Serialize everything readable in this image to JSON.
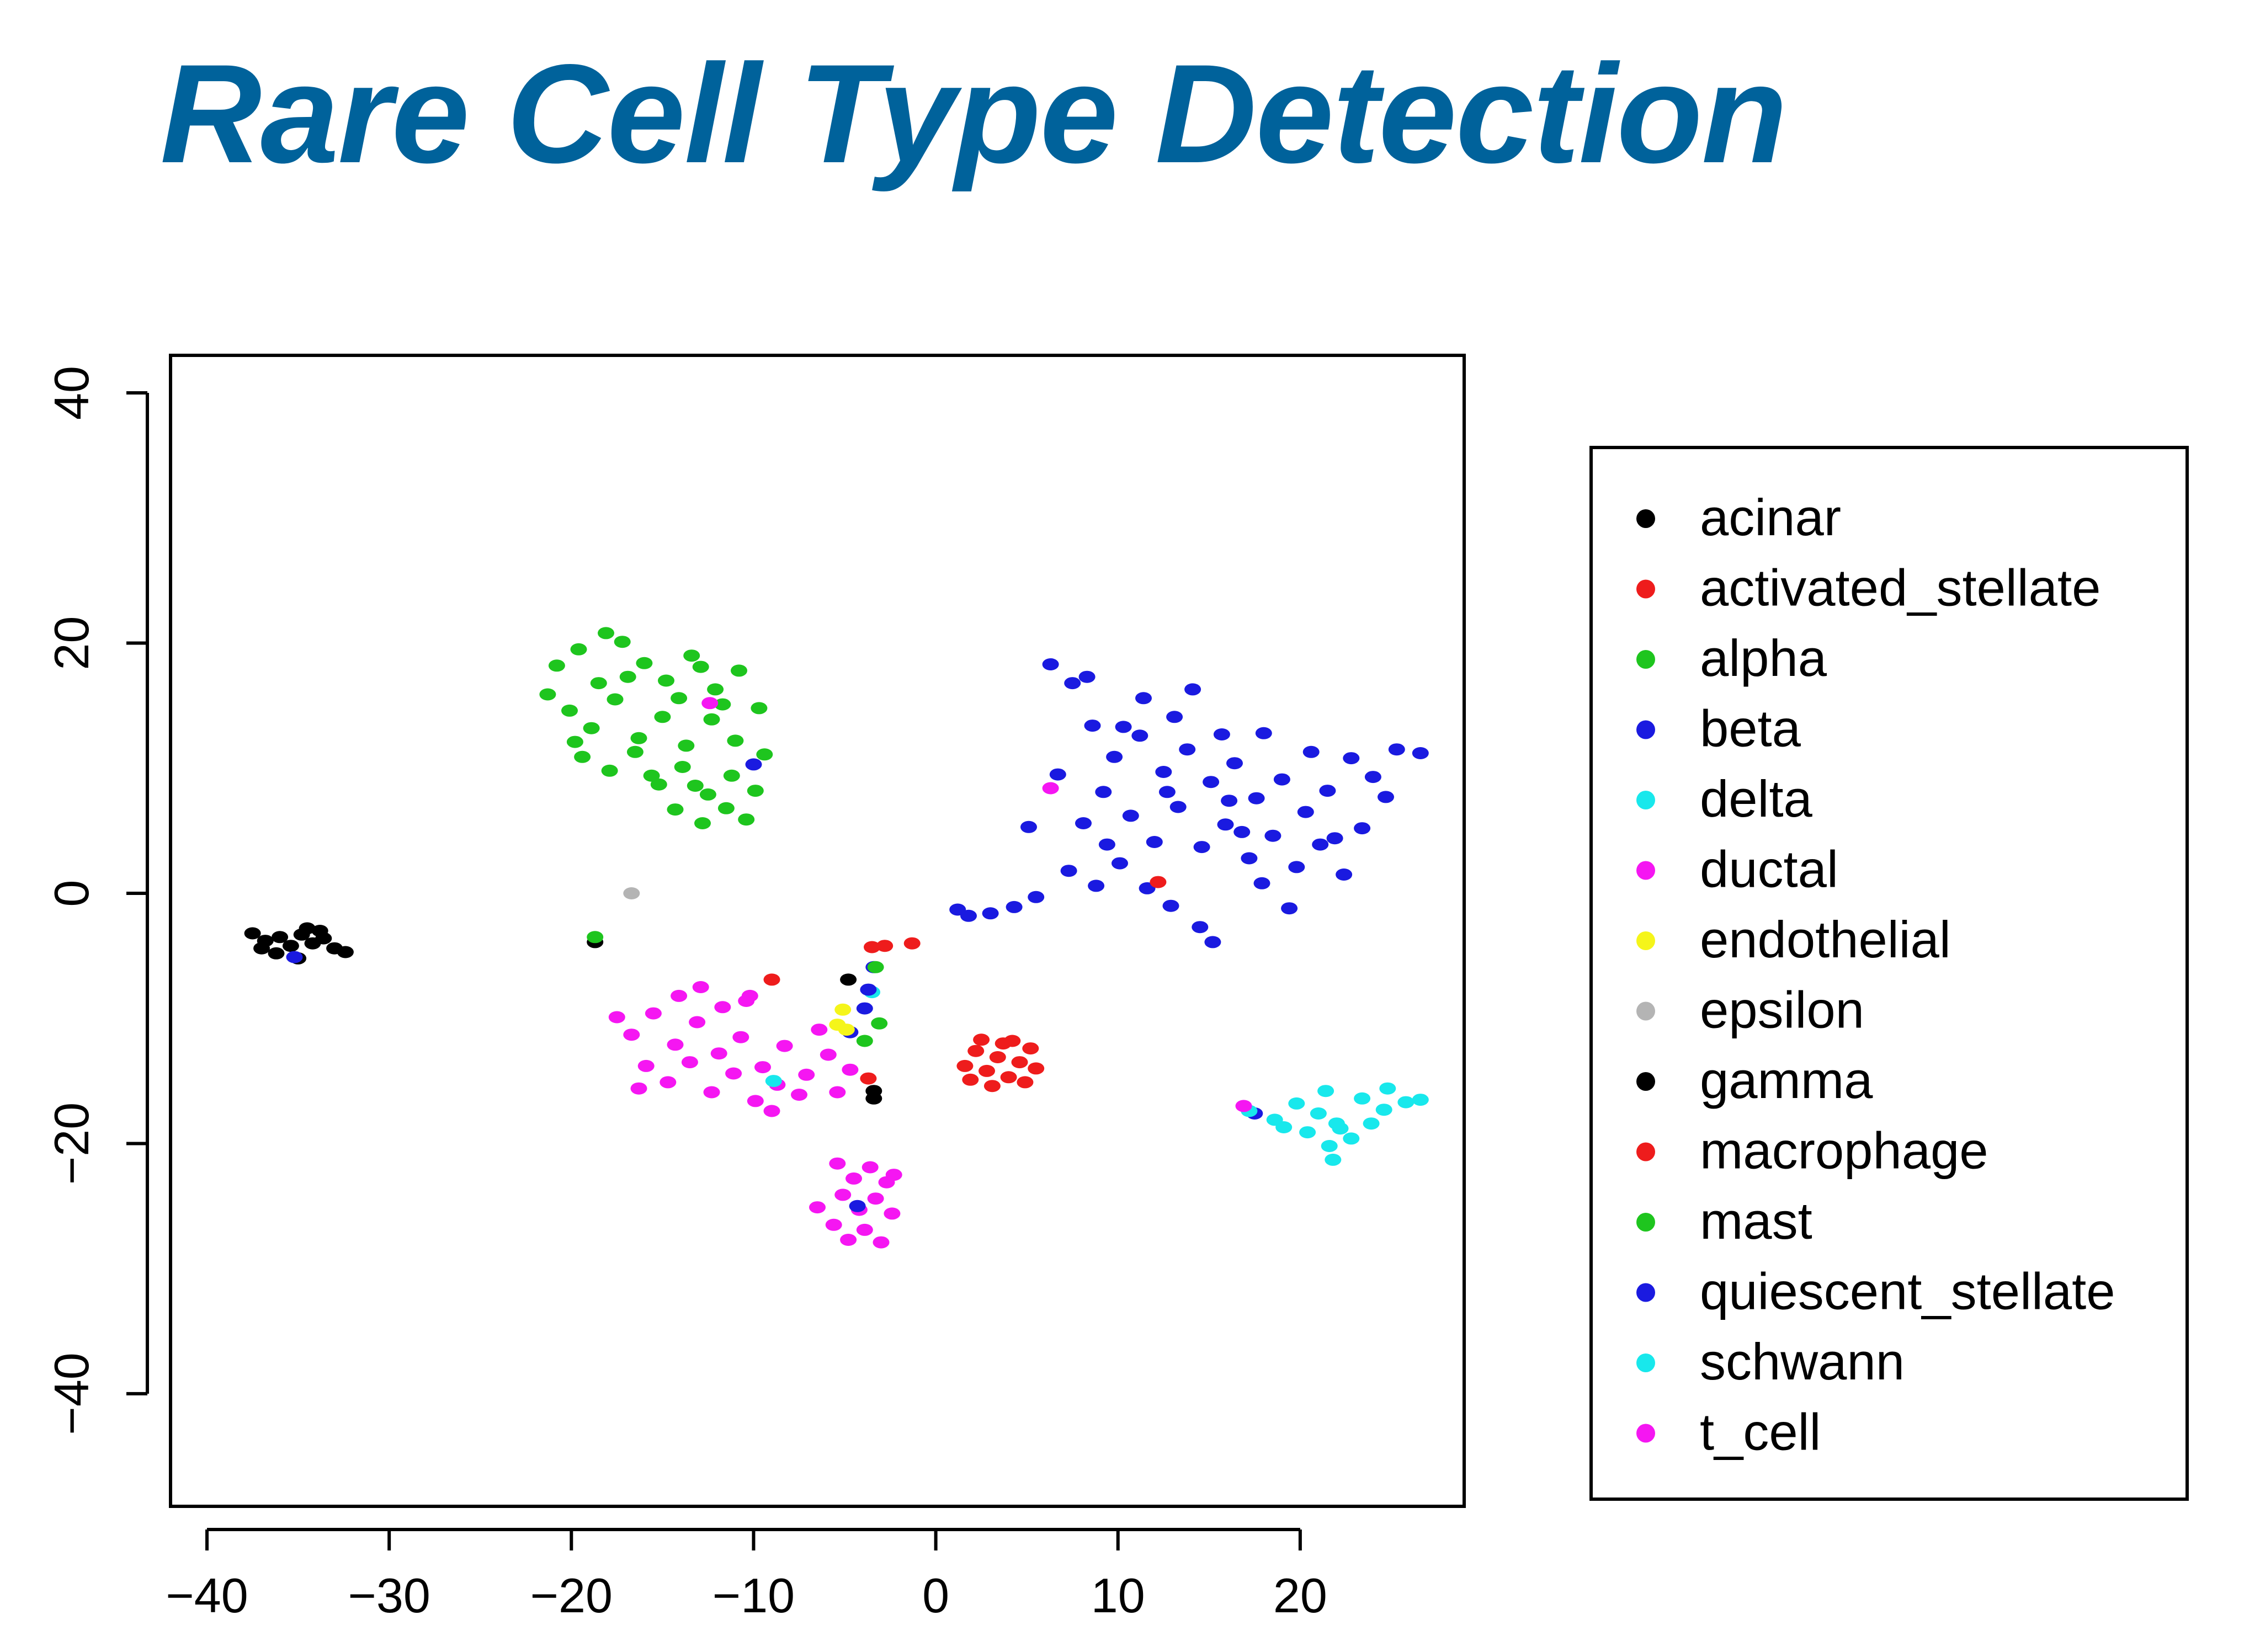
{
  "slide_title": "Rare Cell Type Detection",
  "chart_data": {
    "type": "scatter",
    "title": "",
    "xlabel": "",
    "ylabel": "",
    "xlim": [
      -42,
      29
    ],
    "ylim": [
      -49,
      43
    ],
    "x_ticks": [
      -40,
      -30,
      -20,
      -10,
      0,
      10,
      20
    ],
    "y_ticks": [
      -40,
      -20,
      0,
      20,
      40
    ],
    "x_tick_labels": [
      "−40",
      "−30",
      "−20",
      "−10",
      "0",
      "10",
      "20"
    ],
    "y_tick_labels": [
      "−40",
      "−20",
      "0",
      "20",
      "40"
    ],
    "grid": false,
    "legend_position": "right",
    "series": [
      {
        "name": "acinar",
        "color": "#000000",
        "points": [
          [
            -37.5,
            -3.2
          ],
          [
            -36.8,
            -3.8
          ],
          [
            -36,
            -3.5
          ],
          [
            -35.4,
            -4.2
          ],
          [
            -34.8,
            -3.3
          ],
          [
            -34.2,
            -4
          ],
          [
            -33.6,
            -3.6
          ],
          [
            -33,
            -4.4
          ],
          [
            -32.4,
            -4.7
          ],
          [
            -36.2,
            -4.8
          ],
          [
            -35,
            -5.2
          ],
          [
            -34.5,
            -2.8
          ],
          [
            -33.8,
            -3
          ],
          [
            -37,
            -4.4
          ]
        ]
      },
      {
        "name": "activated_stellate",
        "color": "#ee1c1c",
        "points": [
          [
            1.6,
            -13.8
          ],
          [
            2.2,
            -12.6
          ],
          [
            2.8,
            -14.2
          ],
          [
            3.4,
            -13.1
          ],
          [
            4,
            -14.7
          ],
          [
            4.6,
            -13.5
          ],
          [
            5.2,
            -12.4
          ],
          [
            3.1,
            -15.4
          ],
          [
            2.5,
            -11.7
          ],
          [
            4.2,
            -11.8
          ],
          [
            1.9,
            -14.9
          ],
          [
            5.5,
            -14
          ],
          [
            3.7,
            -12
          ],
          [
            4.9,
            -15.1
          ]
        ]
      },
      {
        "name": "alpha",
        "color": "#1ec51e",
        "points": [
          [
            -20.8,
            18.2
          ],
          [
            -19.6,
            19.5
          ],
          [
            -18.5,
            16.8
          ],
          [
            -17.2,
            20.1
          ],
          [
            -16,
            18.4
          ],
          [
            -14.8,
            17
          ],
          [
            -13.4,
            19
          ],
          [
            -12.1,
            16.3
          ],
          [
            -10.8,
            17.8
          ],
          [
            -20.1,
            14.6
          ],
          [
            -18.9,
            13.2
          ],
          [
            -17.6,
            15.5
          ],
          [
            -16.3,
            12.4
          ],
          [
            -15,
            14.1
          ],
          [
            -13.7,
            11.8
          ],
          [
            -12.3,
            13.9
          ],
          [
            -11,
            12.2
          ],
          [
            -9.7,
            14.8
          ],
          [
            -19.4,
            10.9
          ],
          [
            -17.9,
            9.8
          ],
          [
            -16.5,
            11.3
          ],
          [
            -15.2,
            8.7
          ],
          [
            -13.9,
            10.1
          ],
          [
            -12.5,
            7.9
          ],
          [
            -11.2,
            9.4
          ],
          [
            -9.9,
            8.2
          ],
          [
            -10.4,
            5.9
          ],
          [
            -14.3,
            6.7
          ],
          [
            -12.8,
            5.6
          ],
          [
            -21.3,
            15.9
          ],
          [
            -16.9,
            17.3
          ],
          [
            -14.1,
            15.6
          ],
          [
            -11.7,
            15.1
          ],
          [
            -18.1,
            20.8
          ],
          [
            -9.4,
            11.1
          ],
          [
            -15.6,
            9.4
          ],
          [
            -13.2,
            8.6
          ],
          [
            -19.8,
            12.1
          ],
          [
            -12.9,
            18.1
          ],
          [
            -11.5,
            6.8
          ]
        ]
      },
      {
        "name": "beta",
        "color": "#1a1ae0",
        "points": [
          [
            6.3,
            18.3
          ],
          [
            7.5,
            16.8
          ],
          [
            8.6,
            13.4
          ],
          [
            9.8,
            10.9
          ],
          [
            11.2,
            12.6
          ],
          [
            12.5,
            9.7
          ],
          [
            13.8,
            11.5
          ],
          [
            15.1,
            8.9
          ],
          [
            16.4,
            10.4
          ],
          [
            17.6,
            7.6
          ],
          [
            19,
            9.1
          ],
          [
            20.3,
            6.5
          ],
          [
            21.5,
            8.2
          ],
          [
            22.8,
            10.8
          ],
          [
            24,
            9.3
          ],
          [
            25.3,
            11.5
          ],
          [
            26.6,
            11.2
          ],
          [
            8.1,
            5.6
          ],
          [
            9.4,
            3.9
          ],
          [
            10.7,
            6.2
          ],
          [
            12,
            4.1
          ],
          [
            13.3,
            6.9
          ],
          [
            14.6,
            3.7
          ],
          [
            15.9,
            5.5
          ],
          [
            17.2,
            2.8
          ],
          [
            18.5,
            4.6
          ],
          [
            19.8,
            2.1
          ],
          [
            21.1,
            3.9
          ],
          [
            22.4,
            1.5
          ],
          [
            7.3,
            1.8
          ],
          [
            8.8,
            0.6
          ],
          [
            10.1,
            2.4
          ],
          [
            11.6,
            0.4
          ],
          [
            12.9,
            -1
          ],
          [
            5.5,
            -0.3
          ],
          [
            4.3,
            -1.1
          ],
          [
            3,
            -1.6
          ],
          [
            1.8,
            -1.8
          ],
          [
            1.2,
            -1.3
          ],
          [
            14.5,
            -2.7
          ],
          [
            15.2,
            -3.9
          ],
          [
            16.1,
            7.4
          ],
          [
            18,
            12.8
          ],
          [
            20.6,
            11.3
          ],
          [
            13.1,
            14.1
          ],
          [
            11.4,
            15.6
          ],
          [
            9.2,
            8.1
          ],
          [
            23.4,
            5.2
          ],
          [
            6.7,
            9.5
          ],
          [
            15.7,
            12.7
          ],
          [
            17.9,
            0.8
          ],
          [
            19.4,
            -1.2
          ],
          [
            14.1,
            16.3
          ],
          [
            8.3,
            17.3
          ],
          [
            21.9,
            4.4
          ],
          [
            24.7,
            7.7
          ],
          [
            5.1,
            5.3
          ],
          [
            12.7,
            8.1
          ],
          [
            16.8,
            4.9
          ],
          [
            10.3,
            13.3
          ],
          [
            -4.7,
            -11.1
          ],
          [
            -3.9,
            -9.2
          ],
          [
            -3.4,
            -5.9
          ],
          [
            17.5,
            -17.6
          ]
        ]
      },
      {
        "name": "delta",
        "color": "#18e8ec",
        "points": [
          [
            17.2,
            -17.4
          ],
          [
            18.6,
            -18.1
          ],
          [
            19.8,
            -16.8
          ],
          [
            21,
            -17.6
          ],
          [
            22.2,
            -18.8
          ],
          [
            23.4,
            -16.4
          ],
          [
            24.6,
            -17.3
          ],
          [
            25.8,
            -16.7
          ],
          [
            26.6,
            -16.5
          ],
          [
            20.4,
            -19.1
          ],
          [
            21.6,
            -20.2
          ],
          [
            22.8,
            -19.6
          ],
          [
            23.9,
            -18.4
          ],
          [
            21.4,
            -15.8
          ],
          [
            19.1,
            -18.7
          ],
          [
            24.8,
            -15.6
          ],
          [
            21.8,
            -21.3
          ],
          [
            -3.5,
            -7.9
          ]
        ]
      },
      {
        "name": "ductal",
        "color": "#f516f2",
        "points": [
          [
            -16.7,
            -11.3
          ],
          [
            -15.5,
            -9.6
          ],
          [
            -14.3,
            -12.1
          ],
          [
            -13.1,
            -10.3
          ],
          [
            -11.9,
            -12.8
          ],
          [
            -10.7,
            -11.5
          ],
          [
            -9.5,
            -13.9
          ],
          [
            -8.3,
            -12.2
          ],
          [
            -7.1,
            -14.5
          ],
          [
            -5.9,
            -12.9
          ],
          [
            -4.7,
            -14.1
          ],
          [
            -15.9,
            -13.8
          ],
          [
            -14.7,
            -15.1
          ],
          [
            -13.5,
            -13.5
          ],
          [
            -12.3,
            -15.9
          ],
          [
            -11.1,
            -14.4
          ],
          [
            -9.9,
            -16.6
          ],
          [
            -8.7,
            -15.3
          ],
          [
            -7.5,
            -16.1
          ],
          [
            -14.1,
            -8.2
          ],
          [
            -12.9,
            -7.5
          ],
          [
            -11.7,
            -9.1
          ],
          [
            -10.4,
            -8.6
          ],
          [
            -17.5,
            -9.9
          ],
          [
            -16.3,
            -15.6
          ],
          [
            -9,
            -17.4
          ],
          [
            -6.4,
            -10.9
          ],
          [
            -5.4,
            -15.9
          ],
          [
            -5.4,
            -21.6
          ],
          [
            -4.5,
            -22.8
          ],
          [
            -3.6,
            -21.9
          ],
          [
            -2.7,
            -23.1
          ],
          [
            -5.1,
            -24.1
          ],
          [
            -4.2,
            -25.3
          ],
          [
            -3.3,
            -24.4
          ],
          [
            -2.4,
            -25.6
          ],
          [
            -5.6,
            -26.5
          ],
          [
            -4.8,
            -27.7
          ],
          [
            -3.9,
            -26.9
          ],
          [
            -3,
            -27.9
          ],
          [
            -6.5,
            -25.1
          ],
          [
            -2.3,
            -22.5
          ]
        ]
      },
      {
        "name": "endothelial",
        "color": "#f5f51a",
        "points": [
          [
            -5.1,
            -9.3
          ],
          [
            -5.4,
            -10.5
          ],
          [
            -4.9,
            -10.9
          ]
        ]
      },
      {
        "name": "epsilon",
        "color": "#b4b4b4",
        "points": [
          [
            -16.7,
            0
          ]
        ]
      },
      {
        "name": "gamma",
        "color": "#000000",
        "points": [
          [
            -18.7,
            -3.9
          ],
          [
            -4.8,
            -6.9
          ],
          [
            -3.4,
            -16.4
          ],
          [
            -3.4,
            -15.8
          ]
        ]
      },
      {
        "name": "macrophage",
        "color": "#ee1c1c",
        "points": [
          [
            -3.5,
            -4.3
          ],
          [
            -2.8,
            -4.2
          ],
          [
            -1.3,
            -4
          ],
          [
            -9,
            -6.9
          ],
          [
            -3.7,
            -14.8
          ],
          [
            12.2,
            0.9
          ]
        ]
      },
      {
        "name": "mast",
        "color": "#1ec51e",
        "points": [
          [
            -3.3,
            -5.9
          ],
          [
            -3.1,
            -10.4
          ],
          [
            -3.9,
            -11.8
          ],
          [
            -18.7,
            -3.5
          ]
        ]
      },
      {
        "name": "quiescent_stellate",
        "color": "#1a1ae0",
        "points": [
          [
            -35.2,
            -5.1
          ],
          [
            -10,
            10.3
          ],
          [
            -3.7,
            -7.7
          ],
          [
            -4.3,
            -25
          ]
        ]
      },
      {
        "name": "schwann",
        "color": "#18e8ec",
        "points": [
          [
            22,
            -18.4
          ],
          [
            -8.9,
            -15
          ]
        ]
      },
      {
        "name": "t_cell",
        "color": "#f516f2",
        "points": [
          [
            -12.4,
            15.2
          ],
          [
            6.3,
            8.4
          ],
          [
            16.9,
            -17
          ],
          [
            -10.2,
            -8.2
          ]
        ]
      }
    ]
  }
}
